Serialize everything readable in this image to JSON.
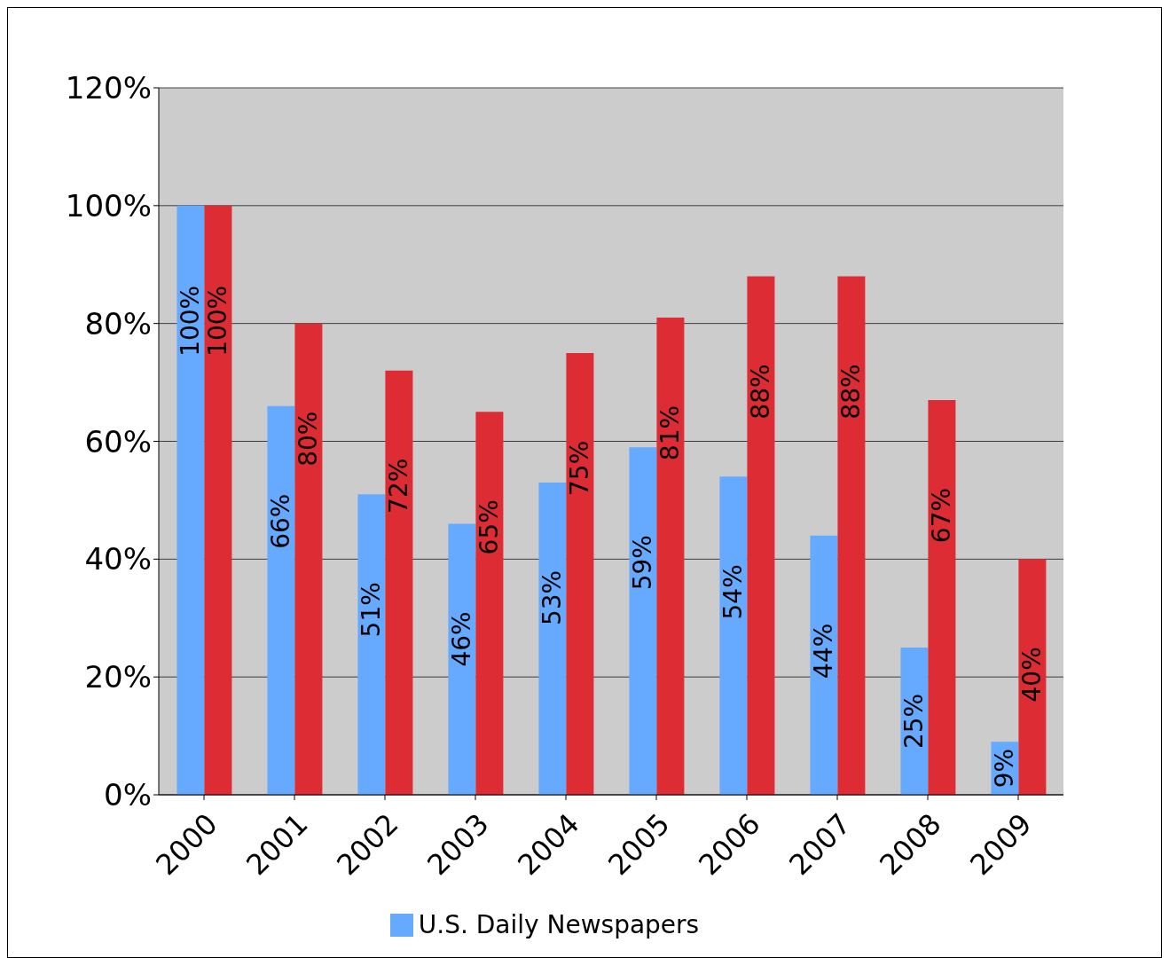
{
  "chart_data": {
    "type": "bar",
    "categories": [
      "2000",
      "2001",
      "2002",
      "2003",
      "2004",
      "2005",
      "2006",
      "2007",
      "2008",
      "2009"
    ],
    "series": [
      {
        "name": "U.S. Daily Newspapers",
        "color": "#66aaff",
        "values": [
          100,
          66,
          51,
          46,
          53,
          59,
          54,
          44,
          25,
          9
        ],
        "value_labels": [
          "100%",
          "66%",
          "51%",
          "46%",
          "53%",
          "59%",
          "54%",
          "44%",
          "25%",
          "9%"
        ]
      },
      {
        "color": "#dd2c33",
        "values": [
          100,
          80,
          72,
          65,
          75,
          81,
          88,
          88,
          67,
          40
        ],
        "value_labels": [
          "100%",
          "80%",
          "72%",
          "65%",
          "75%",
          "81%",
          "88%",
          "88%",
          "67%",
          "40%"
        ]
      }
    ],
    "ylim": [
      0,
      120
    ],
    "yticks": [
      {
        "value": 0,
        "label": "0%"
      },
      {
        "value": 20,
        "label": "20%"
      },
      {
        "value": 40,
        "label": "40%"
      },
      {
        "value": 60,
        "label": "60%"
      },
      {
        "value": 80,
        "label": "80%"
      },
      {
        "value": 100,
        "label": "100%"
      },
      {
        "value": 120,
        "label": "120%"
      }
    ],
    "grid": "y",
    "legend": "bottom"
  }
}
